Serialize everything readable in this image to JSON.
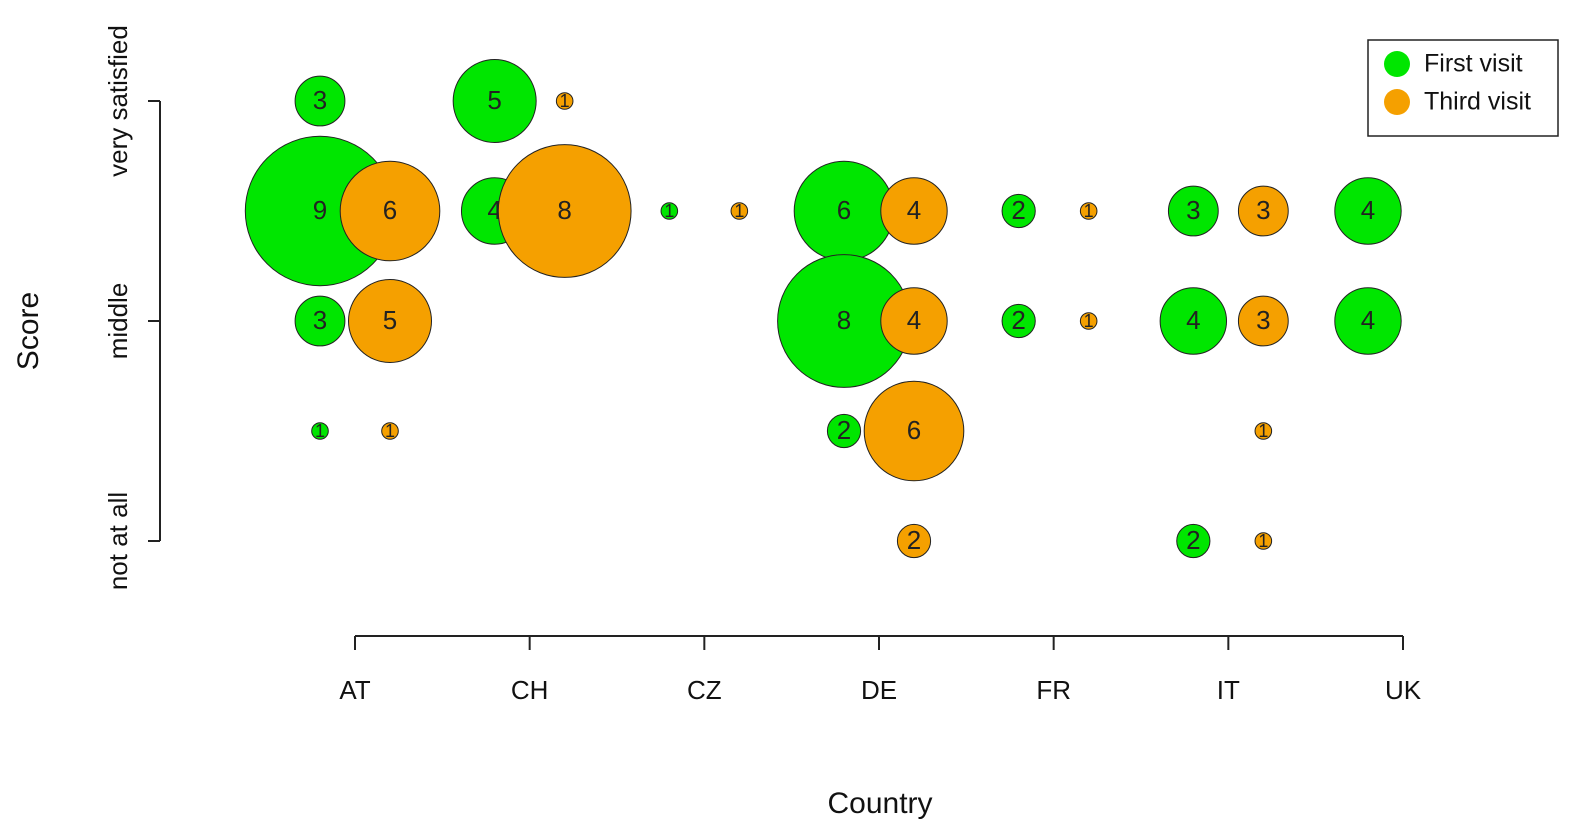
{
  "chart_data": {
    "type": "bubble",
    "x_label": "Country",
    "y_label": "Score",
    "categories": [
      "AT",
      "CH",
      "CZ",
      "DE",
      "FR",
      "IT",
      "UK"
    ],
    "ylim": [
      1,
      5
    ],
    "yticks": [
      {
        "value": 1,
        "label": "not at all"
      },
      {
        "value": 3,
        "label": "middle"
      },
      {
        "value": 5,
        "label": "very satisfied"
      }
    ],
    "legend": "top-right",
    "series": [
      {
        "name": "First visit",
        "color": "#00e600",
        "x": [
          "AT",
          "AT",
          "AT",
          "AT",
          "CH",
          "CH",
          "CZ",
          "DE",
          "DE",
          "DE",
          "FR",
          "FR",
          "IT",
          "IT",
          "IT",
          "UK",
          "UK"
        ],
        "values": [
          5,
          4,
          3,
          2,
          5,
          4,
          4,
          4,
          3,
          2,
          4,
          3,
          4,
          3,
          1,
          4,
          3
        ],
        "sizes": [
          3,
          9,
          3,
          1,
          5,
          4,
          1,
          6,
          8,
          2,
          2,
          2,
          3,
          4,
          2,
          4,
          4
        ]
      },
      {
        "name": "Third visit",
        "color": "#f5a000",
        "x": [
          "AT",
          "AT",
          "AT",
          "CH",
          "CH",
          "CZ",
          "DE",
          "DE",
          "DE",
          "DE",
          "FR",
          "FR",
          "IT",
          "IT",
          "IT",
          "IT"
        ],
        "values": [
          4,
          3,
          2,
          5,
          4,
          4,
          4,
          3,
          2,
          1,
          4,
          3,
          4,
          3,
          2,
          1
        ],
        "sizes": [
          6,
          5,
          1,
          1,
          8,
          1,
          4,
          4,
          6,
          2,
          1,
          1,
          3,
          3,
          1,
          1
        ]
      }
    ]
  }
}
